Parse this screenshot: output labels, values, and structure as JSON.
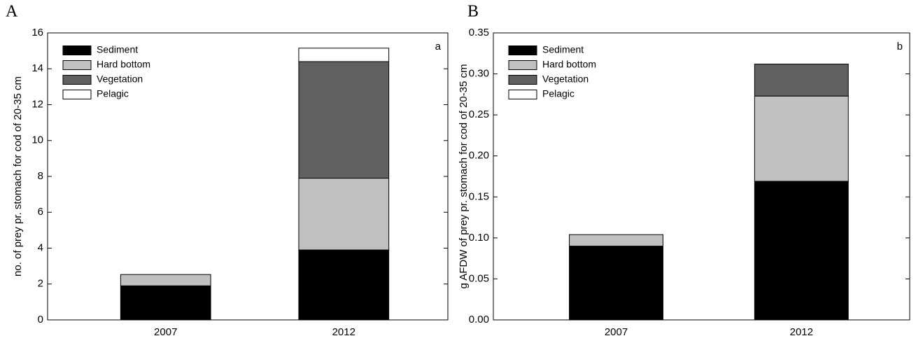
{
  "chart_data": [
    {
      "type": "stacked_bar",
      "panel_label": "A",
      "annotation": "a",
      "ylabel": "no. of prey pr. stomach for cod of 20-35 cm",
      "categories": [
        "2007",
        "2012"
      ],
      "series": [
        {
          "name": "Sediment",
          "color": "#000000",
          "values": [
            1.9,
            3.9
          ]
        },
        {
          "name": "Hard bottom",
          "color": "#c0c0c0",
          "values": [
            0.63,
            4.0
          ]
        },
        {
          "name": "Vegetation",
          "color": "#606060",
          "values": [
            0,
            6.5
          ]
        },
        {
          "name": "Pelagic",
          "color": "#ffffff",
          "values": [
            0,
            0.75
          ]
        }
      ],
      "ylim": [
        0,
        16
      ],
      "yticks": [
        0,
        2,
        4,
        6,
        8,
        10,
        12,
        14,
        16
      ],
      "legend": "upper left"
    },
    {
      "type": "stacked_bar",
      "panel_label": "B",
      "annotation": "b",
      "ylabel": "g AFDW of prey pr. stomach for cod of 20-35 cm",
      "categories": [
        "2007",
        "2012"
      ],
      "series": [
        {
          "name": "Sediment",
          "color": "#000000",
          "values": [
            0.09,
            0.169
          ]
        },
        {
          "name": "Hard bottom",
          "color": "#c0c0c0",
          "values": [
            0.014,
            0.104
          ]
        },
        {
          "name": "Vegetation",
          "color": "#606060",
          "values": [
            0,
            0.039
          ]
        },
        {
          "name": "Pelagic",
          "color": "#ffffff",
          "values": [
            0,
            0
          ]
        }
      ],
      "ylim": [
        0,
        0.35
      ],
      "yticks": [
        {
          "value": 0,
          "label": "0.00"
        },
        {
          "value": 0.05,
          "label": "0.05"
        },
        {
          "value": 0.1,
          "label": "0.10"
        },
        {
          "value": 0.15,
          "label": "0.15"
        },
        {
          "value": 0.2,
          "label": "0.20"
        },
        {
          "value": 0.25,
          "label": "0.25"
        },
        {
          "value": 0.3,
          "label": "0.30"
        },
        {
          "value": 0.35,
          "label": "0.35"
        }
      ],
      "legend": "upper left"
    }
  ]
}
